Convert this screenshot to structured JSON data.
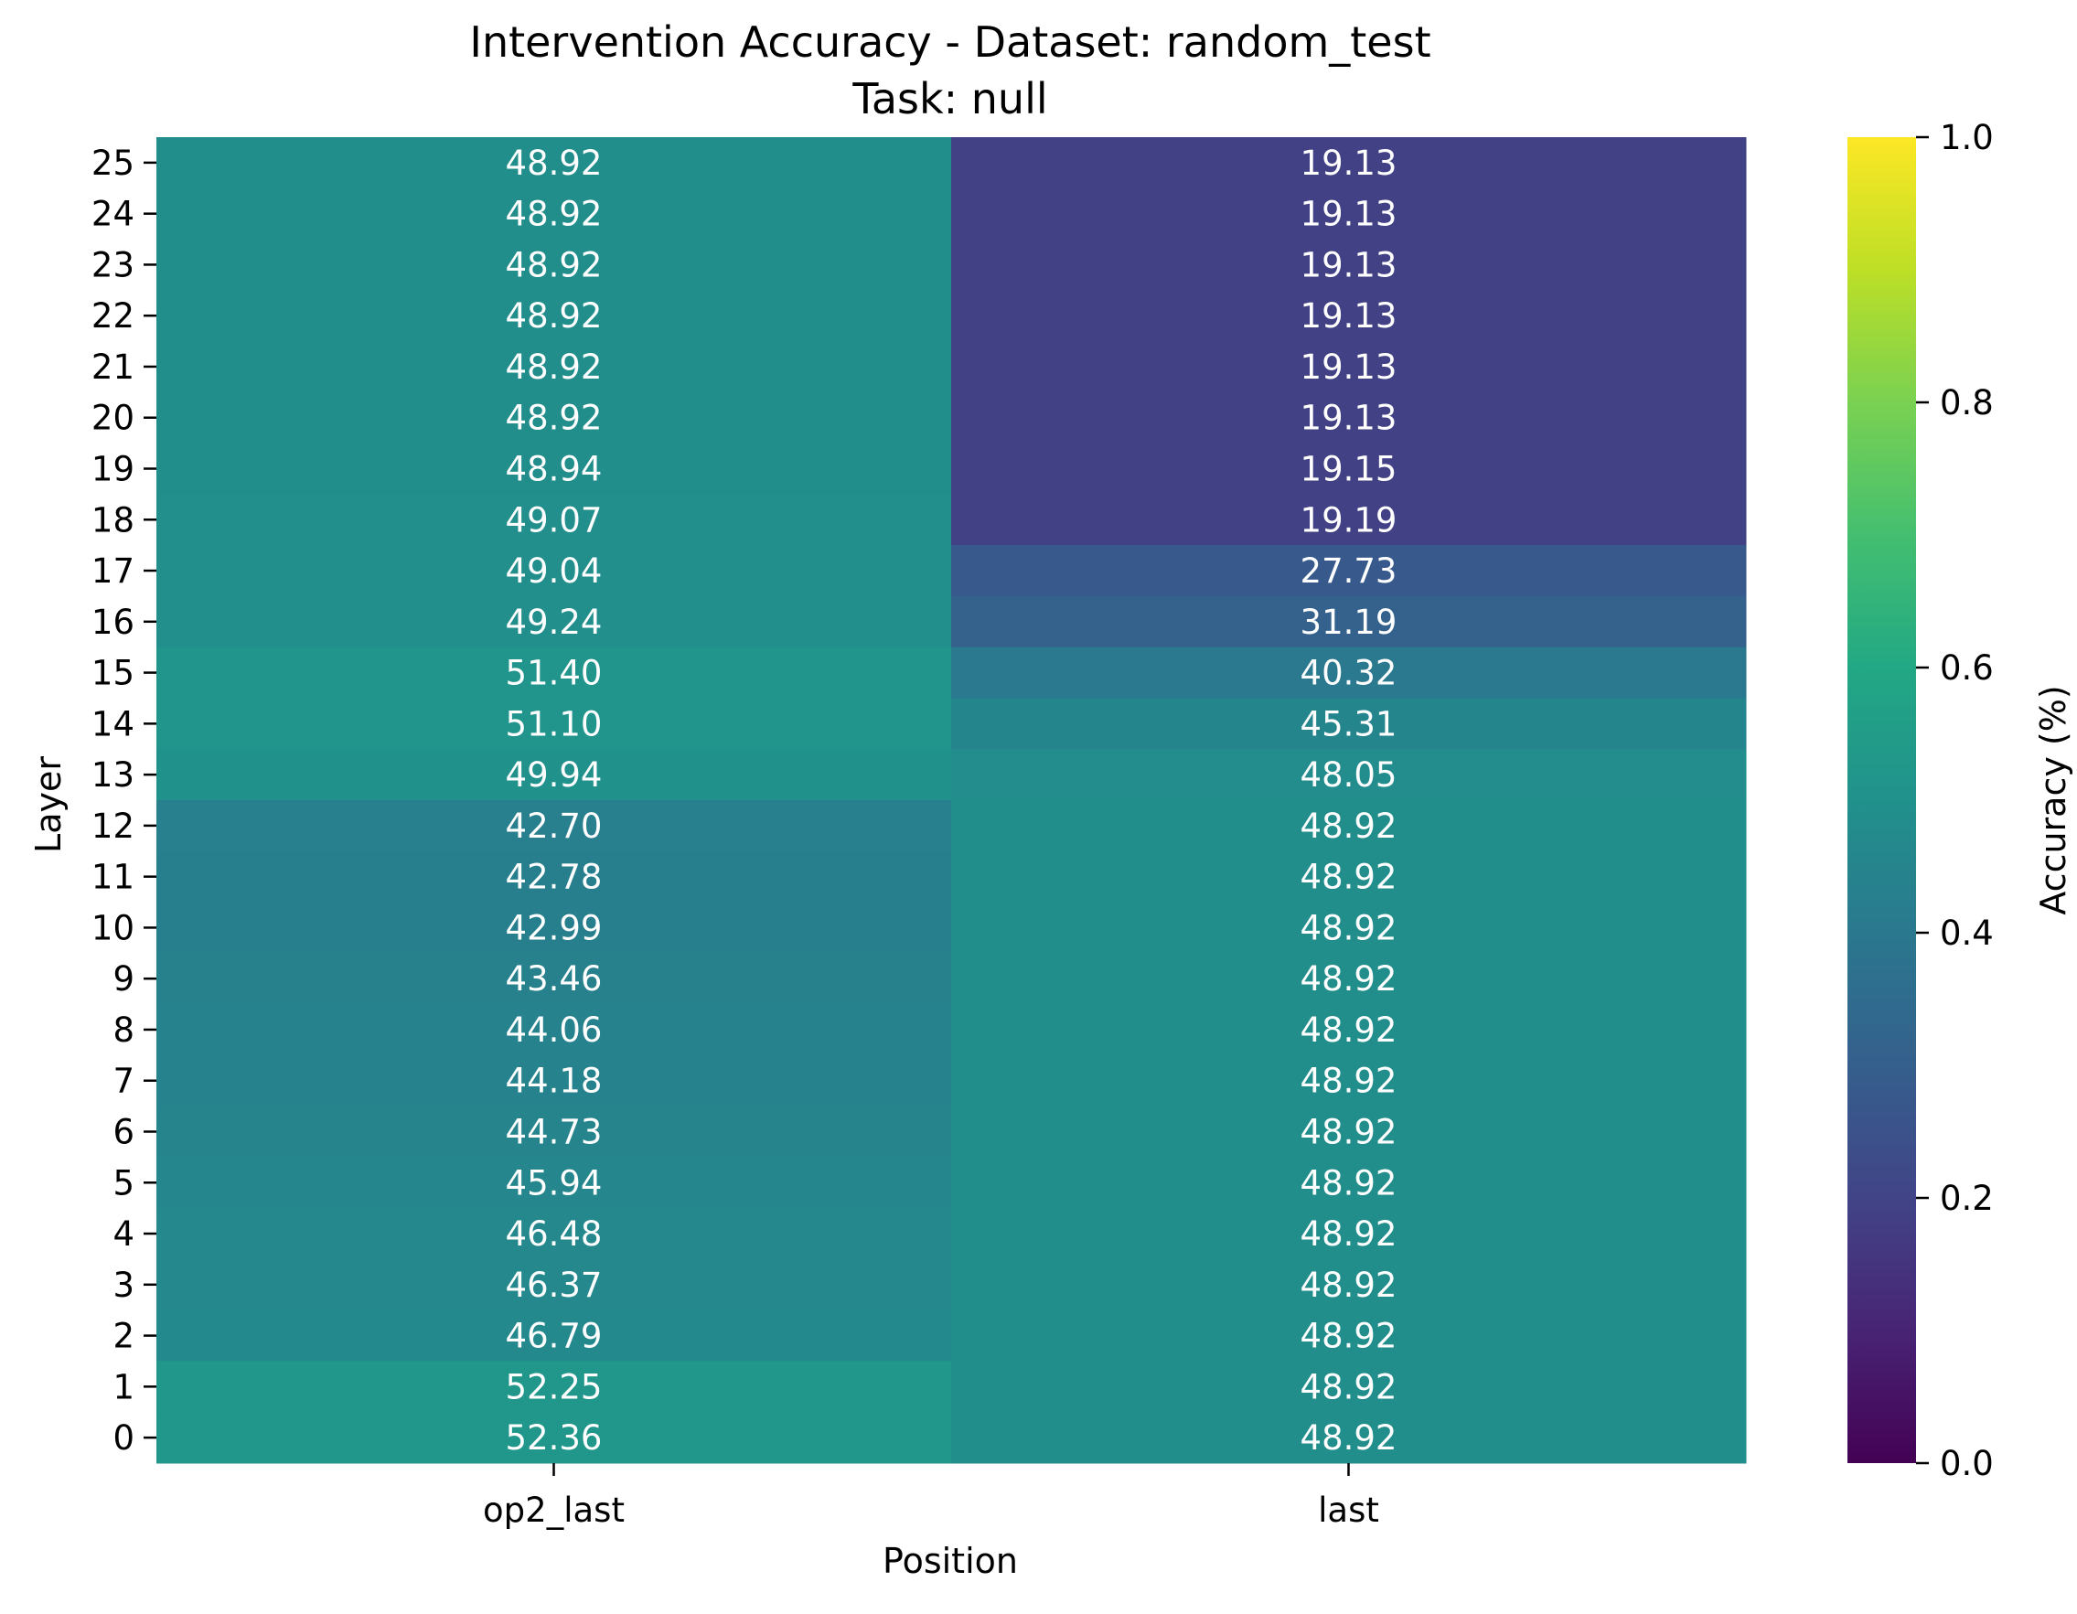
{
  "chart_data": {
    "type": "heatmap",
    "title": "Intervention Accuracy - Dataset: random_test",
    "subtitle": "Task: null",
    "xlabel": "Position",
    "ylabel": "Layer",
    "x_categories": [
      "op2_last",
      "last"
    ],
    "y_categories": [
      25,
      24,
      23,
      22,
      21,
      20,
      19,
      18,
      17,
      16,
      15,
      14,
      13,
      12,
      11,
      10,
      9,
      8,
      7,
      6,
      5,
      4,
      3,
      2,
      1,
      0
    ],
    "values": [
      [
        48.92,
        19.13
      ],
      [
        48.92,
        19.13
      ],
      [
        48.92,
        19.13
      ],
      [
        48.92,
        19.13
      ],
      [
        48.92,
        19.13
      ],
      [
        48.92,
        19.13
      ],
      [
        48.94,
        19.15
      ],
      [
        49.07,
        19.19
      ],
      [
        49.04,
        27.73
      ],
      [
        49.24,
        31.19
      ],
      [
        51.4,
        40.32
      ],
      [
        51.1,
        45.31
      ],
      [
        49.94,
        48.05
      ],
      [
        42.7,
        48.92
      ],
      [
        42.78,
        48.92
      ],
      [
        42.99,
        48.92
      ],
      [
        43.46,
        48.92
      ],
      [
        44.06,
        48.92
      ],
      [
        44.18,
        48.92
      ],
      [
        44.73,
        48.92
      ],
      [
        45.94,
        48.92
      ],
      [
        46.48,
        48.92
      ],
      [
        46.37,
        48.92
      ],
      [
        46.79,
        48.92
      ],
      [
        52.25,
        48.92
      ],
      [
        52.36,
        48.92
      ]
    ],
    "colormap": "viridis",
    "colorbar": {
      "label": "Accuracy (%)",
      "range": [
        0.0,
        1.0
      ],
      "ticks": [
        "0.0",
        "0.2",
        "0.4",
        "0.6",
        "0.8",
        "1.0"
      ]
    },
    "annotation_color": "#ffffff"
  }
}
